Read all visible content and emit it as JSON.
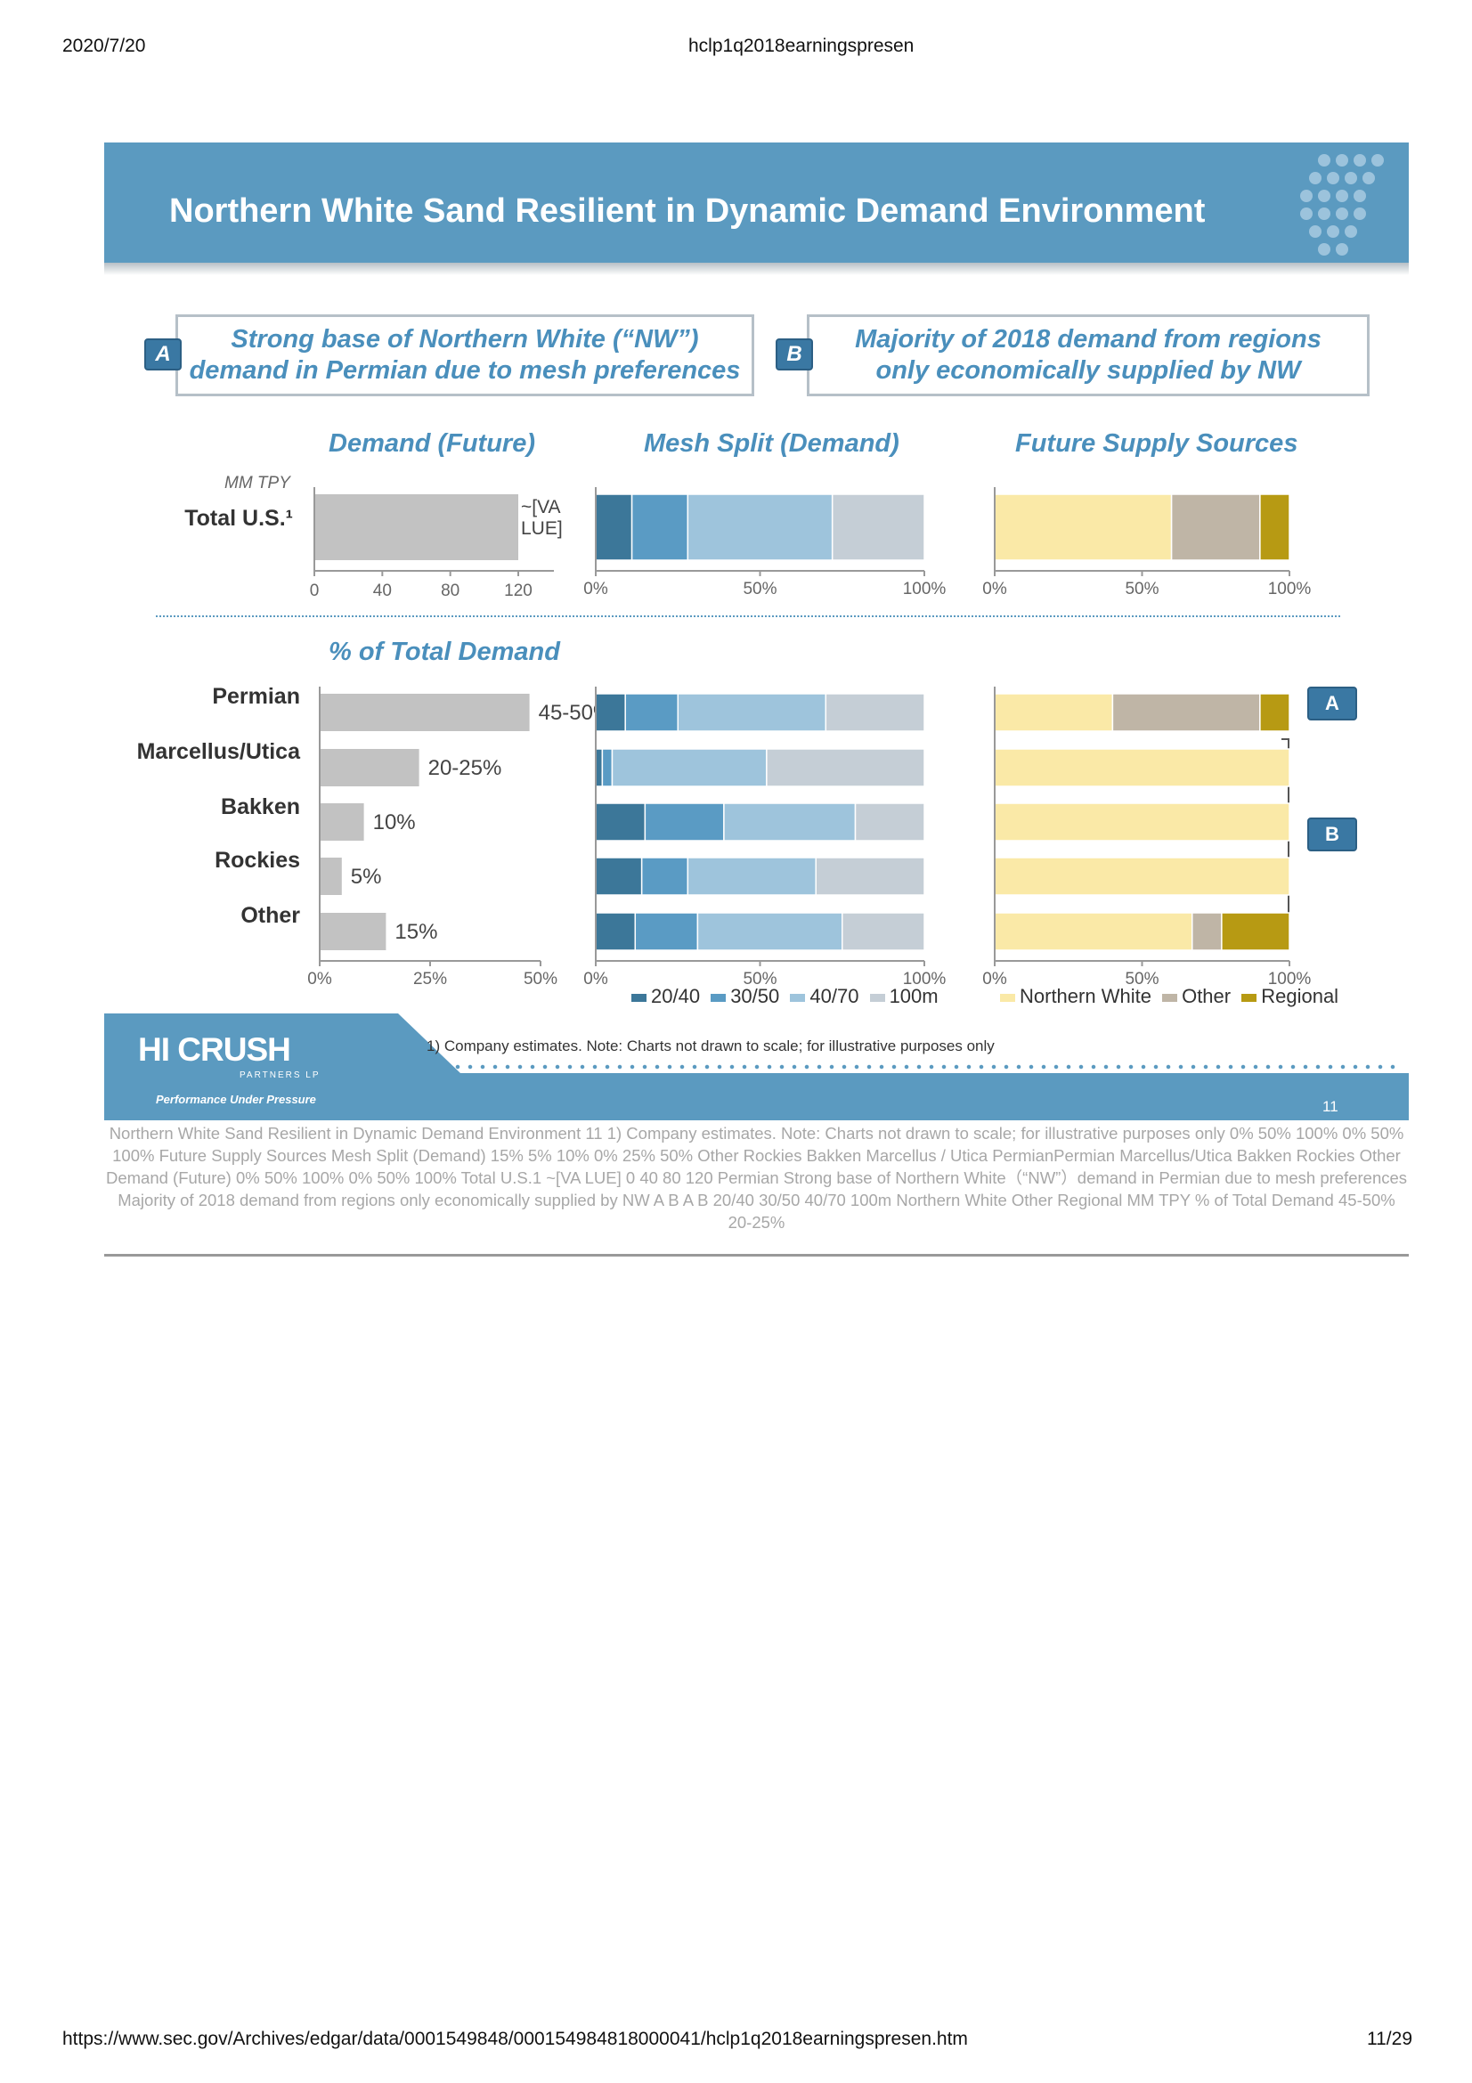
{
  "header": {
    "date": "2020/7/20",
    "doc_title": "hclp1q2018earningspresen"
  },
  "footer": {
    "url": "https://www.sec.gov/Archives/edgar/data/0001549848/000154984818000041/hclp1q2018earningspresen.htm",
    "page": "11/29"
  },
  "slide": {
    "title": "Northern White Sand Resilient in Dynamic Demand Environment",
    "callout_a": {
      "tag": "A",
      "line1": "Strong base of Northern White (“NW”)",
      "line2": "demand in Permian due to mesh preferences"
    },
    "callout_b": {
      "tag": "B",
      "line1": "Majority of 2018 demand from regions",
      "line2": "only economically supplied by NW"
    },
    "sec_demand": "Demand (Future)",
    "sec_mesh": "Mesh Split (Demand)",
    "sec_supply": "Future Supply Sources",
    "sec_pct": "% of Total Demand",
    "mm_tpy": "MM TPY",
    "total_label": "Total U.S.¹",
    "total_value_l1": "~[VA",
    "total_value_l2": "LUE]",
    "demand_ticks": [
      "0",
      "40",
      "80",
      "120"
    ],
    "pct3_ticks": [
      "0%",
      "50%",
      "100%"
    ],
    "pct_demand_ticks": [
      "0%",
      "25%",
      "50%"
    ],
    "side_tag_a": "A",
    "side_tag_b": "B",
    "footnote": "1)   Company estimates.  Note: Charts not drawn to scale; for illustrative purposes only",
    "page_number": "11",
    "logo": "HI CRUSH",
    "logo_sub": "PARTNERS LP",
    "tagline": "Performance Under Pressure"
  },
  "chart_data": [
    {
      "type": "bar",
      "title": "Demand (Future)",
      "ylabel": "MM TPY",
      "categories": [
        "Total U.S.¹"
      ],
      "values": [
        120
      ],
      "value_label": "~[VALUE]",
      "xlim": [
        0,
        120
      ]
    },
    {
      "type": "bar",
      "title": "Mesh Split (Demand)",
      "stacked": true,
      "categories": [
        "Total U.S.¹"
      ],
      "series": [
        {
          "name": "20/40",
          "values": [
            11
          ],
          "color": "#3c7799"
        },
        {
          "name": "30/50",
          "values": [
            17
          ],
          "color": "#5a9bc4"
        },
        {
          "name": "40/70",
          "values": [
            44
          ],
          "color": "#9ec4dc"
        },
        {
          "name": "100m",
          "values": [
            28
          ],
          "color": "#c5ced6"
        }
      ],
      "xlim": [
        0,
        100
      ]
    },
    {
      "type": "bar",
      "title": "Future Supply Sources",
      "stacked": true,
      "categories": [
        "Total U.S.¹"
      ],
      "series": [
        {
          "name": "Northern White",
          "values": [
            60
          ],
          "color": "#fae9a7"
        },
        {
          "name": "Other",
          "values": [
            30
          ],
          "color": "#bfb5a6"
        },
        {
          "name": "Regional",
          "values": [
            10
          ],
          "color": "#b79a13"
        }
      ],
      "xlim": [
        0,
        100
      ]
    },
    {
      "type": "bar",
      "title": "% of Total Demand",
      "categories": [
        "Permian",
        "Marcellus/Utica",
        "Bakken",
        "Rockies",
        "Other"
      ],
      "values": [
        47.5,
        22.5,
        10,
        5,
        15
      ],
      "value_labels": [
        "45-50%",
        "20-25%",
        "10%",
        "5%",
        "15%"
      ],
      "xlim": [
        0,
        50
      ]
    },
    {
      "type": "bar",
      "title": "Mesh Split (Demand)",
      "stacked": true,
      "categories": [
        "Permian",
        "Marcellus/Utica",
        "Bakken",
        "Rockies",
        "Other"
      ],
      "series": [
        {
          "name": "20/40",
          "values": [
            9,
            2,
            15,
            14,
            12
          ],
          "color": "#3c7799"
        },
        {
          "name": "30/50",
          "values": [
            16,
            3,
            24,
            14,
            19
          ],
          "color": "#5a9bc4"
        },
        {
          "name": "40/70",
          "values": [
            45,
            47,
            40,
            39,
            44
          ],
          "color": "#9ec4dc"
        },
        {
          "name": "100m",
          "values": [
            30,
            48,
            21,
            33,
            25
          ],
          "color": "#c5ced6"
        }
      ],
      "xlim": [
        0,
        100
      ]
    },
    {
      "type": "bar",
      "title": "Future Supply Sources",
      "stacked": true,
      "categories": [
        "Permian",
        "Marcellus/Utica",
        "Bakken",
        "Rockies",
        "Other"
      ],
      "series": [
        {
          "name": "Northern White",
          "values": [
            40,
            100,
            100,
            100,
            67
          ],
          "color": "#fae9a7"
        },
        {
          "name": "Other",
          "values": [
            50,
            0,
            0,
            0,
            10
          ],
          "color": "#bfb5a6"
        },
        {
          "name": "Regional",
          "values": [
            10,
            0,
            0,
            0,
            23
          ],
          "color": "#b79a13"
        }
      ],
      "xlim": [
        0,
        100
      ]
    }
  ],
  "extracted_text": "Northern White Sand Resilient in Dynamic Demand Environment  11  1) Company estimates. Note: Charts not drawn to scale; for illustrative purposes only  0% 50% 100% 0% 50% 100% Future Supply Sources Mesh Split (Demand)  15%  5%  10%  0% 25% 50% Other Rockies Bakken Marcellus / Utica PermianPermian Marcellus/Utica  Bakken  Rockies  Other  Demand (Future)  0% 50% 100% 0% 50% 100% Total U.S.1 ~[VA LUE]  0 40 80 120 Permian Strong base of Northern White（“NW”）demand in Permian due to mesh preferences  Majority of 2018 demand from regions  only economically supplied by NW  A  B  A B  20/40 30/50 40/70 100m Northern White Other Regional  MM TPY  % of Total Demand  45-50%  20-25%"
}
